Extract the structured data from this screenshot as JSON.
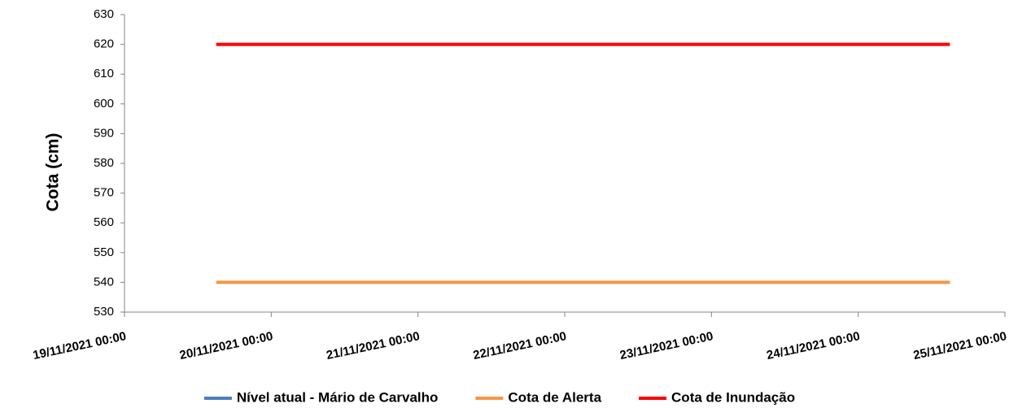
{
  "chart_data": {
    "type": "line",
    "y_label": "Cota (cm)",
    "x": [
      "19/11/2021 15:00",
      "24/11/2021 15:00"
    ],
    "series": [
      {
        "name": "Nível atual - Mário de Carvalho",
        "color": "#4a7ebb",
        "values": [
          null,
          null
        ]
      },
      {
        "name": "Cota de Alerta",
        "color": "#f79646",
        "values": [
          540,
          540
        ]
      },
      {
        "name": "Cota de Inundação",
        "color": "#ff0000",
        "values": [
          620,
          620
        ]
      }
    ],
    "xlim": [
      "19/11/2021 00:00",
      "25/11/2021 00:00"
    ],
    "xticks": [
      "19/11/2021 00:00",
      "20/11/2021 00:00",
      "21/11/2021 00:00",
      "22/11/2021 00:00",
      "23/11/2021 00:00",
      "24/11/2021 00:00",
      "25/11/2021 00:00"
    ],
    "ylim": [
      530,
      630
    ],
    "yticks": [
      530,
      540,
      550,
      560,
      570,
      580,
      590,
      600,
      610,
      620,
      630
    ],
    "legend": "bottom"
  }
}
